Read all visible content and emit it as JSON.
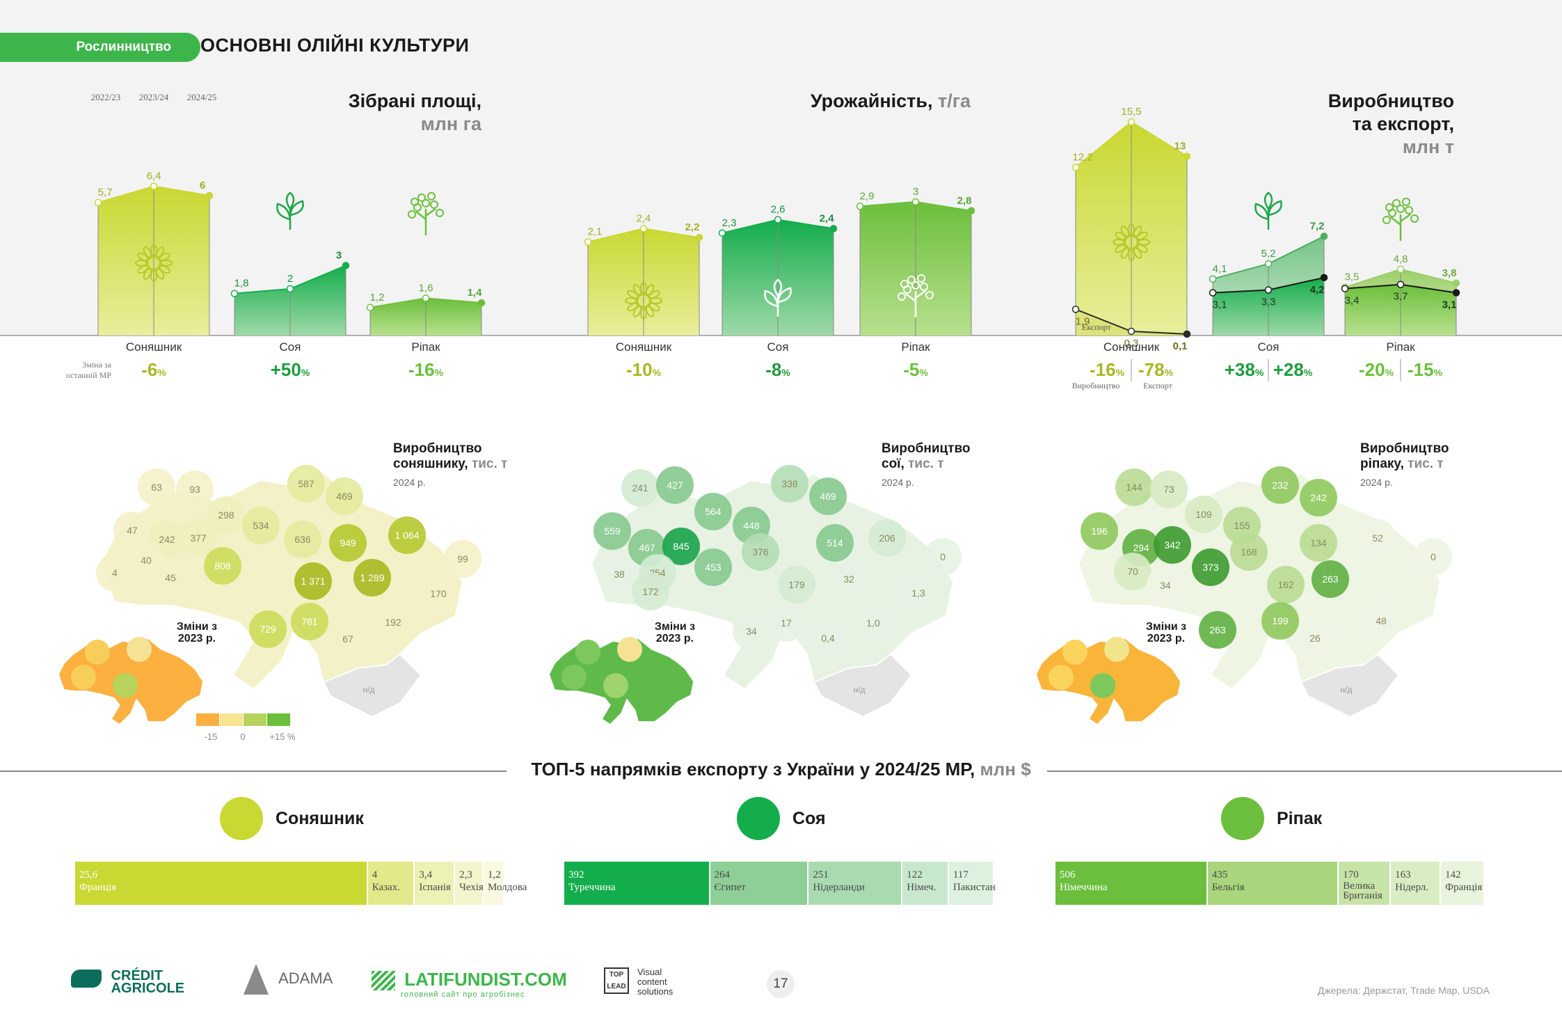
{
  "header": {
    "section": "Рослинництво",
    "title": "ОСНОВНІ ОЛІЙНІ КУЛЬТУРИ"
  },
  "panels": {
    "area": {
      "title": "Зібрані площі,",
      "unit": "млн га"
    },
    "yield": {
      "title": "Урожайність,",
      "unit": "т/га"
    },
    "prod": {
      "title1": "Виробництво",
      "title2": "та експорт,",
      "unit": "млн т"
    }
  },
  "years": [
    "2022/23",
    "2023/24",
    "2024/25"
  ],
  "crops": {
    "sunflower": "Соняшник",
    "soy": "Соя",
    "rapeseed": "Ріпак"
  },
  "change_label": "Зміна за останній МР",
  "sub_labels": {
    "production": "Виробництво",
    "export": "Експорт"
  },
  "chart_data": [
    {
      "type": "area",
      "title": "Зібрані площі, млн га",
      "x": [
        "2022/23",
        "2023/24",
        "2024/25"
      ],
      "series": [
        {
          "name": "Соняшник",
          "values": [
            5.7,
            6.4,
            6.0
          ]
        },
        {
          "name": "Соя",
          "values": [
            1.8,
            2.0,
            3.0
          ]
        },
        {
          "name": "Ріпак",
          "values": [
            1.2,
            1.6,
            1.4
          ]
        }
      ],
      "changes": {
        "Соняшник": "-6",
        "Соя": "+50",
        "Ріпак": "-16"
      }
    },
    {
      "type": "area",
      "title": "Урожайність, т/га",
      "x": [
        "2022/23",
        "2023/24",
        "2024/25"
      ],
      "series": [
        {
          "name": "Соняшник",
          "values": [
            2.1,
            2.4,
            2.2
          ]
        },
        {
          "name": "Соя",
          "values": [
            2.3,
            2.6,
            2.4
          ]
        },
        {
          "name": "Ріпак",
          "values": [
            2.9,
            3.0,
            2.8
          ]
        }
      ],
      "changes": {
        "Соняшник": "-10",
        "Соя": "-8",
        "Ріпак": "-5"
      }
    },
    {
      "type": "area",
      "title": "Виробництво та експорт, млн т",
      "x": [
        "2022/23",
        "2023/24",
        "2024/25"
      ],
      "series": [
        {
          "name": "Соняшник",
          "values": [
            12.2,
            15.5,
            13.0
          ]
        },
        {
          "name": "Експорт",
          "values": [
            1.9,
            0.3,
            0.1
          ]
        },
        {
          "name": "Соя",
          "values": [
            4.1,
            5.2,
            7.2
          ]
        },
        {
          "name": "Соя",
          "values": [
            3.1,
            3.3,
            4.2
          ]
        },
        {
          "name": "Ріпак",
          "values": [
            3.5,
            4.8,
            3.8
          ]
        },
        {
          "name": "Ріпак",
          "values": [
            3.4,
            3.7,
            3.1
          ]
        }
      ],
      "changes": {
        "Соняшник": [
          "-16",
          "-78"
        ],
        "Соя": [
          "+38",
          "+28"
        ],
        "Ріпак": [
          "-20",
          "-15"
        ]
      }
    },
    {
      "type": "bar",
      "title": "ТОП-5 напрямків експорту з України у 2024/25 МР, млн $",
      "series": [
        {
          "name": "Соняшник",
          "categories": [
            "Франція",
            "Казах.",
            "Іспанія",
            "Чехія",
            "Молдова"
          ],
          "values": [
            25.6,
            4.0,
            3.4,
            2.3,
            1.2
          ]
        },
        {
          "name": "Соя",
          "categories": [
            "Туреччина",
            "Єгипет",
            "Нідерланди",
            "Німеч.",
            "Пакистан"
          ],
          "values": [
            392,
            264,
            251,
            122,
            117
          ]
        },
        {
          "name": "Ріпак",
          "categories": [
            "Німеччина",
            "Бельгія",
            "Велика Британія",
            "Нідерл.",
            "Франція"
          ],
          "values": [
            506,
            435,
            170,
            163,
            142
          ]
        }
      ]
    }
  ],
  "changes_fmt": {
    "area": [
      "-6",
      "+50",
      "-16"
    ],
    "yield": [
      "-10",
      "-8",
      "-5"
    ],
    "prod_a": [
      "-16",
      "+38",
      "-20"
    ],
    "prod_b": [
      "-78",
      "+28",
      "-15"
    ],
    "pct": "%"
  },
  "maps": {
    "sun": {
      "title1": "Виробництво",
      "title2": "соняшнику,",
      "unit": "тис. т",
      "year": "2024 р.",
      "values": [
        "63",
        "93",
        "47",
        "242",
        "377",
        "298",
        "534",
        "587",
        "469",
        "40",
        "4",
        "45",
        "808",
        "636",
        "949",
        "1 064",
        "99",
        "1 371",
        "1 289",
        "170",
        "729",
        "781",
        "192",
        "67"
      ]
    },
    "soy": {
      "title1": "Виробництво",
      "title2": "сої,",
      "unit": "тис. т",
      "year": "2024 р.",
      "values": [
        "241",
        "427",
        "559",
        "467",
        "845",
        "564",
        "448",
        "338",
        "469",
        "514",
        "206",
        "0",
        "38",
        "254",
        "172",
        "453",
        "376",
        "179",
        "32",
        "1,3",
        "34",
        "17",
        "1,0",
        "0,4"
      ]
    },
    "rap": {
      "title1": "Виробництво",
      "title2": "ріпаку,",
      "unit": "тис. т",
      "year": "2024 р.",
      "values": [
        "144",
        "73",
        "196",
        "294",
        "342",
        "109",
        "155",
        "232",
        "242",
        "134",
        "52",
        "0",
        "70",
        "34",
        "373",
        "168",
        "162",
        "263",
        "48",
        "263",
        "199",
        "26"
      ]
    },
    "nd": "н/д",
    "changes_title": "Зміни з 2023 р.",
    "legend": [
      "-15",
      "0",
      "+15 %"
    ]
  },
  "top5": {
    "title": "ТОП-5 напрямків експорту з України у 2024/25 МР,",
    "unit": "млн $"
  },
  "footer": {
    "ca": "CRÉDIT AGRICOLE",
    "adama": "ADAMA",
    "latifundist": "LATIFUNDIST.COM",
    "lat_sub": "головний сайт про агробізнес",
    "toplead": "Visual content solutions",
    "page": "17",
    "source": "Джерела: Держстат, Trade Map, USDA"
  },
  "colors": {
    "green": "#3db54a",
    "lime": "#c8d836",
    "dark_green": "#0fae4b"
  }
}
